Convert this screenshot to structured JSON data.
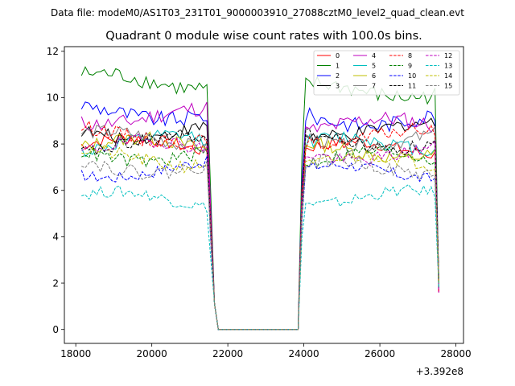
{
  "chart_data": {
    "type": "line",
    "suptitle": "Data file: modeM0/AS1T03_231T01_9000003910_27088cztM0_level2_quad_clean.evt",
    "title": "Quadrant 0 module wise count rates with 100.0s bins.",
    "xlabel": "",
    "ylabel": "",
    "x_offset_label": "+3.392e8",
    "x_offset": 339200000,
    "xlim": [
      17700,
      28200
    ],
    "ylim": [
      -0.6,
      12.2
    ],
    "xticks": [
      18000,
      20000,
      22000,
      24000,
      26000,
      28000
    ],
    "xtick_labels": [
      "18000",
      "20000",
      "22000",
      "24000",
      "26000",
      "28000"
    ],
    "yticks": [
      0,
      2,
      4,
      6,
      8,
      10,
      12
    ],
    "ytick_labels": [
      "0",
      "2",
      "4",
      "6",
      "8",
      "10",
      "12"
    ],
    "grid": false,
    "legend_position": "top-right",
    "segment_1": {
      "x_start": 18150,
      "x_end": 21450,
      "bin": 100
    },
    "transition_1": [
      [
        21550,
        4.5
      ],
      [
        21650,
        1.1
      ],
      [
        21750,
        0
      ]
    ],
    "gap": {
      "x_start": 21750,
      "x_end": 23850,
      "value": 0
    },
    "transition_2": [
      [
        23950,
        5.5
      ]
    ],
    "segment_2": {
      "x_start": 24050,
      "x_end": 27450,
      "bin": 100
    },
    "tail": {
      "x": 27550,
      "value": 1.6
    },
    "series": [
      {
        "name": "0",
        "color": "#ff0000",
        "dash": "solid",
        "level1": 7.9,
        "level2": 7.8,
        "noise": 0.28
      },
      {
        "name": "1",
        "color": "#008000",
        "dash": "solid",
        "level1": 10.7,
        "level2": 10.3,
        "noise": 0.35
      },
      {
        "name": "2",
        "color": "#0000ff",
        "dash": "solid",
        "level1": 9.4,
        "level2": 9.1,
        "noise": 0.35
      },
      {
        "name": "3",
        "color": "#000000",
        "dash": "solid",
        "level1": 8.6,
        "level2": 8.6,
        "noise": 0.3
      },
      {
        "name": "4",
        "color": "#bf00bf",
        "dash": "solid",
        "level1": 9.2,
        "level2": 8.8,
        "noise": 0.35
      },
      {
        "name": "5",
        "color": "#00bfbf",
        "dash": "solid",
        "level1": 8.0,
        "level2": 8.0,
        "noise": 0.3
      },
      {
        "name": "6",
        "color": "#bfbf00",
        "dash": "solid",
        "level1": 7.9,
        "level2": 7.7,
        "noise": 0.3
      },
      {
        "name": "7",
        "color": "#808080",
        "dash": "solid",
        "level1": 8.2,
        "level2": 8.2,
        "noise": 0.3
      },
      {
        "name": "8",
        "color": "#ff0000",
        "dash": "dashed",
        "level1": 8.4,
        "level2": 8.3,
        "noise": 0.3
      },
      {
        "name": "9",
        "color": "#008000",
        "dash": "dashed",
        "level1": 7.6,
        "level2": 7.4,
        "noise": 0.3
      },
      {
        "name": "10",
        "color": "#0000ff",
        "dash": "dashed",
        "level1": 6.9,
        "level2": 6.8,
        "noise": 0.25
      },
      {
        "name": "11",
        "color": "#000000",
        "dash": "dashed",
        "level1": 8.0,
        "level2": 8.1,
        "noise": 0.3
      },
      {
        "name": "12",
        "color": "#bf00bf",
        "dash": "dashed",
        "level1": 7.8,
        "level2": 7.6,
        "noise": 0.3
      },
      {
        "name": "13",
        "color": "#00bfbf",
        "dash": "dashed",
        "level1": 5.6,
        "level2": 5.7,
        "noise": 0.25
      },
      {
        "name": "14",
        "color": "#bfbf00",
        "dash": "dashed",
        "level1": 7.4,
        "level2": 7.2,
        "noise": 0.3
      },
      {
        "name": "15",
        "color": "#808080",
        "dash": "dashed",
        "level1": 7.1,
        "level2": 7.0,
        "noise": 0.3
      }
    ]
  }
}
